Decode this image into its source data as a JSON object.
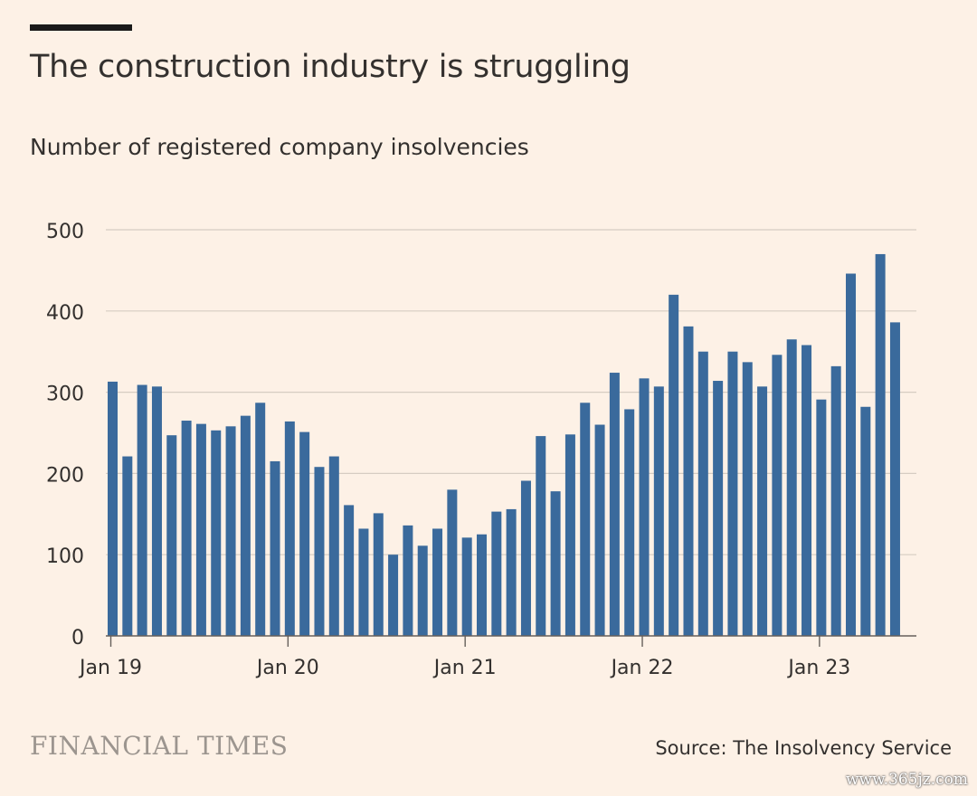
{
  "header": {
    "title": "The construction industry is struggling",
    "subtitle": "Number of registered company insolvencies"
  },
  "footer": {
    "logo_text": "FINANCIAL TIMES",
    "source": "Source: The Insolvency Service",
    "watermark": "www.365jz.com"
  },
  "colors": {
    "bar": "#3a6a9c",
    "background": "#fdf1e6",
    "grid": "#d6ccc2",
    "text": "#33302e"
  },
  "chart_data": {
    "type": "bar",
    "title": "The construction industry is struggling",
    "subtitle": "Number of registered company insolvencies",
    "ylim": [
      0,
      500
    ],
    "yticks": [
      0,
      100,
      200,
      300,
      400,
      500
    ],
    "xtick_labels": [
      "Jan 19",
      "Jan 20",
      "Jan 21",
      "Jan 22",
      "Jan 23"
    ],
    "grid": true,
    "categories": [
      "2019-01",
      "2019-02",
      "2019-03",
      "2019-04",
      "2019-05",
      "2019-06",
      "2019-07",
      "2019-08",
      "2019-09",
      "2019-10",
      "2019-11",
      "2019-12",
      "2020-01",
      "2020-02",
      "2020-03",
      "2020-04",
      "2020-05",
      "2020-06",
      "2020-07",
      "2020-08",
      "2020-09",
      "2020-10",
      "2020-11",
      "2020-12",
      "2021-01",
      "2021-02",
      "2021-03",
      "2021-04",
      "2021-05",
      "2021-06",
      "2021-07",
      "2021-08",
      "2021-09",
      "2021-10",
      "2021-11",
      "2021-12",
      "2022-01",
      "2022-02",
      "2022-03",
      "2022-04",
      "2022-05",
      "2022-06",
      "2022-07",
      "2022-08",
      "2022-09",
      "2022-10",
      "2022-11",
      "2022-12",
      "2023-01",
      "2023-02",
      "2023-03",
      "2023-04",
      "2023-05",
      "2023-06"
    ],
    "values": [
      313,
      221,
      309,
      307,
      247,
      265,
      261,
      253,
      258,
      271,
      287,
      215,
      264,
      251,
      208,
      221,
      161,
      132,
      151,
      100,
      136,
      111,
      132,
      180,
      121,
      125,
      153,
      156,
      191,
      246,
      178,
      248,
      287,
      260,
      324,
      279,
      317,
      307,
      420,
      381,
      350,
      314,
      350,
      337,
      307,
      346,
      365,
      358,
      291,
      332,
      446,
      282,
      470,
      386
    ]
  }
}
